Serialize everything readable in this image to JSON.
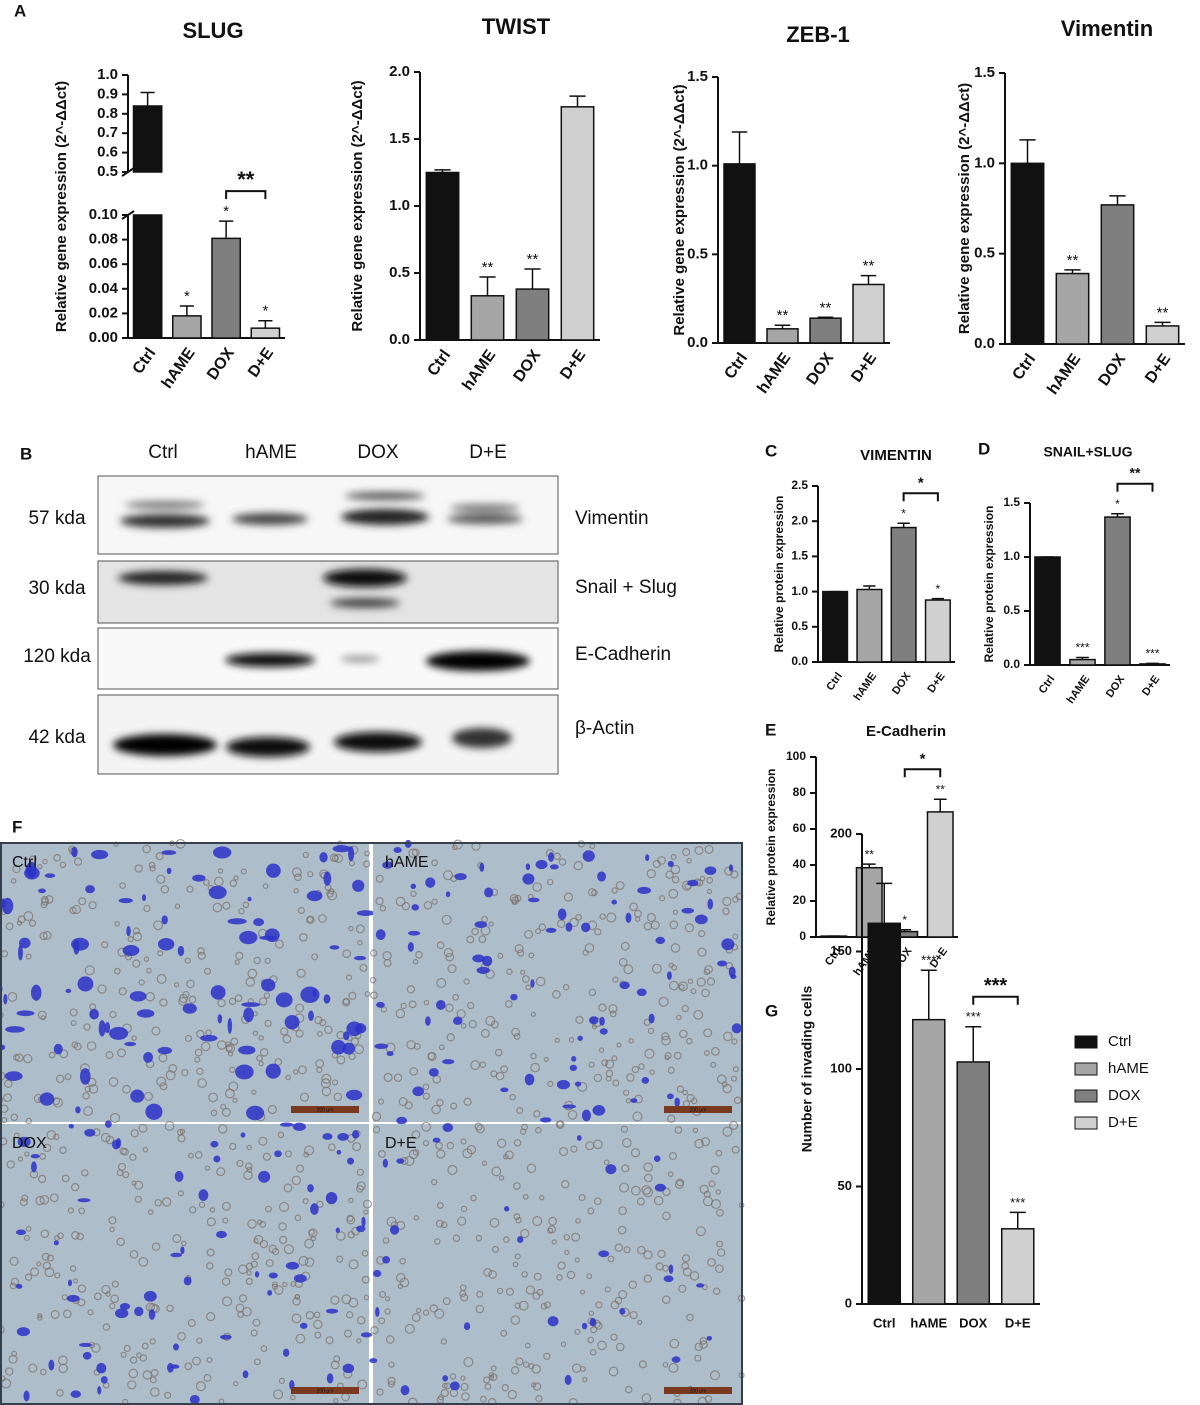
{
  "panel_labels": [
    "A",
    "B",
    "C",
    "D",
    "E",
    "F",
    "G"
  ],
  "chart_data": [
    {
      "type": "bar",
      "title": "SLUG",
      "ylabel": "Relative gene expression (2^-ΔΔct)",
      "categories": [
        "Ctrl",
        "hAME",
        "DOX",
        "D+E"
      ],
      "values": [
        0.84,
        0.018,
        0.081,
        0.008
      ],
      "errors": [
        0.07,
        0.008,
        0.014,
        0.006
      ],
      "colors": [
        "#111111",
        "#a6a6a6",
        "#7f7f7f",
        "#d0d0d0"
      ],
      "ylim": [
        0,
        1.0
      ],
      "ybreak": [
        0.1,
        0.5
      ],
      "yticks": [
        {
          "value": 0,
          "label": "0.00"
        },
        0.02,
        0.04,
        0.06,
        0.08,
        {
          "value": 0.1,
          "label": "0.10"
        },
        0.5,
        0.6,
        0.7,
        0.8,
        0.9,
        {
          "value": 1,
          "label": "1.0"
        }
      ],
      "value_annotations": [
        null,
        "*",
        "*",
        "*"
      ],
      "brackets": [
        {
          "from": 2,
          "to": 3,
          "label": "**"
        }
      ]
    },
    {
      "type": "bar",
      "title": "TWIST",
      "ylabel": "Relative gene expression (2^-ΔΔct)",
      "categories": [
        "Ctrl",
        "hAME",
        "DOX",
        "D+E"
      ],
      "values": [
        1.25,
        0.33,
        0.38,
        1.74
      ],
      "errors": [
        0.02,
        0.14,
        0.15,
        0.08
      ],
      "colors": [
        "#111111",
        "#a6a6a6",
        "#7f7f7f",
        "#d0d0d0"
      ],
      "ylim": [
        0,
        2.0
      ],
      "yticks": [
        {
          "value": 0,
          "label": "0.0"
        },
        0.5,
        {
          "value": 1,
          "label": "1.0"
        },
        1.5,
        {
          "value": 2,
          "label": "2.0"
        }
      ],
      "value_annotations": [
        null,
        "**",
        "**",
        null
      ]
    },
    {
      "type": "bar",
      "title": "ZEB-1",
      "ylabel": "Relative gene expression (2^-ΔΔct)",
      "categories": [
        "Ctrl",
        "hAME",
        "DOX",
        "D+E"
      ],
      "values": [
        1.01,
        0.08,
        0.14,
        0.33
      ],
      "errors": [
        0.18,
        0.02,
        0.005,
        0.05
      ],
      "colors": [
        "#111111",
        "#a6a6a6",
        "#7f7f7f",
        "#d0d0d0"
      ],
      "ylim": [
        0,
        1.5
      ],
      "yticks": [
        {
          "value": 0,
          "label": "0.0"
        },
        0.5,
        {
          "value": 1,
          "label": "1.0"
        },
        1.5
      ],
      "value_annotations": [
        null,
        "**",
        "**",
        "**"
      ]
    },
    {
      "type": "bar",
      "title": "Vimentin",
      "ylabel": "Relative gene expression (2^-ΔΔct)",
      "categories": [
        "Ctrl",
        "hAME",
        "DOX",
        "D+E"
      ],
      "values": [
        1.0,
        0.39,
        0.77,
        0.1
      ],
      "errors": [
        0.13,
        0.02,
        0.05,
        0.02
      ],
      "colors": [
        "#111111",
        "#a6a6a6",
        "#7f7f7f",
        "#d0d0d0"
      ],
      "ylim": [
        0,
        1.5
      ],
      "yticks": [
        {
          "value": 0,
          "label": "0.0"
        },
        0.5,
        {
          "value": 1,
          "label": "1.0"
        },
        1.5
      ],
      "value_annotations": [
        null,
        "**",
        null,
        "**"
      ]
    },
    {
      "type": "bar",
      "title": "VIMENTIN",
      "ylabel": "Relative protein expression",
      "categories": [
        "Ctrl",
        "hAME",
        "DOX",
        "D+E"
      ],
      "values": [
        1.0,
        1.03,
        1.91,
        0.88
      ],
      "errors": [
        0,
        0.05,
        0.06,
        0.02
      ],
      "colors": [
        "#111111",
        "#a6a6a6",
        "#7f7f7f",
        "#d0d0d0"
      ],
      "ylim": [
        0,
        2.5
      ],
      "yticks": [
        {
          "value": 0,
          "label": "0.0"
        },
        0.5,
        {
          "value": 1,
          "label": "1.0"
        },
        1.5,
        {
          "value": 2,
          "label": "2.0"
        },
        2.5
      ],
      "value_annotations": [
        null,
        null,
        "*",
        "*"
      ],
      "brackets": [
        {
          "from": 2,
          "to": 3,
          "label": "*"
        }
      ]
    },
    {
      "type": "bar",
      "title": "SNAIL+SLUG",
      "ylabel": "Relative protein expression",
      "categories": [
        "Ctrl",
        "hAME",
        "DOX",
        "D+E"
      ],
      "values": [
        1.0,
        0.05,
        1.37,
        0.01
      ],
      "errors": [
        0,
        0.02,
        0.03,
        0.005
      ],
      "colors": [
        "#111111",
        "#a6a6a6",
        "#7f7f7f",
        "#d0d0d0"
      ],
      "ylim": [
        0,
        1.5
      ],
      "yticks": [
        {
          "value": 0,
          "label": "0.0"
        },
        0.5,
        {
          "value": 1,
          "label": "1.0"
        },
        1.5
      ],
      "value_annotations": [
        null,
        "***",
        "*",
        "***"
      ],
      "brackets": [
        {
          "from": 2,
          "to": 3,
          "label": "**"
        }
      ]
    },
    {
      "type": "bar",
      "title": "E-Cadherin",
      "ylabel": "Relative protein expression",
      "categories": [
        "Ctrl",
        "hAME",
        "DOX",
        "D+E"
      ],
      "values": [
        0.5,
        38.5,
        3,
        69.5
      ],
      "errors": [
        0,
        2,
        1,
        7
      ],
      "colors": [
        "#111111",
        "#a6a6a6",
        "#7f7f7f",
        "#d0d0d0"
      ],
      "ylim": [
        0,
        100
      ],
      "yticks": [
        0,
        20,
        40,
        60,
        80,
        100
      ],
      "value_annotations": [
        null,
        "**",
        "*",
        "**"
      ],
      "brackets": [
        {
          "from": 2,
          "to": 3,
          "label": "*"
        }
      ]
    },
    {
      "type": "bar",
      "ylabel": "Number of invading cells",
      "categories": [
        "Ctrl",
        "hAME",
        "DOX",
        "D+E"
      ],
      "values": [
        162,
        121,
        103,
        32
      ],
      "errors": [
        17,
        21,
        15,
        7
      ],
      "colors": [
        "#111111",
        "#a6a6a6",
        "#7f7f7f",
        "#d0d0d0"
      ],
      "ylim": [
        0,
        200
      ],
      "yticks": [
        0,
        50,
        100,
        150,
        200
      ],
      "value_annotations": [
        null,
        "***",
        "***",
        "***"
      ],
      "brackets": [
        {
          "from": 2,
          "to": 3,
          "label": "***"
        }
      ],
      "legend": "right"
    }
  ],
  "blot": {
    "lanes": [
      "Ctrl",
      "hAME",
      "DOX",
      "D+E"
    ],
    "rows": [
      {
        "size": "57 kda",
        "protein": "Vimentin"
      },
      {
        "size": "30 kda",
        "protein": "Snail + Slug"
      },
      {
        "size": "120 kda",
        "protein": "E-Cadherin"
      },
      {
        "size": "42 kda",
        "protein": "β-Actin"
      }
    ]
  },
  "micrographs": {
    "panels": [
      "Ctrl",
      "hAME",
      "DOX",
      "D+E"
    ],
    "scale_bar": "200 μm"
  }
}
